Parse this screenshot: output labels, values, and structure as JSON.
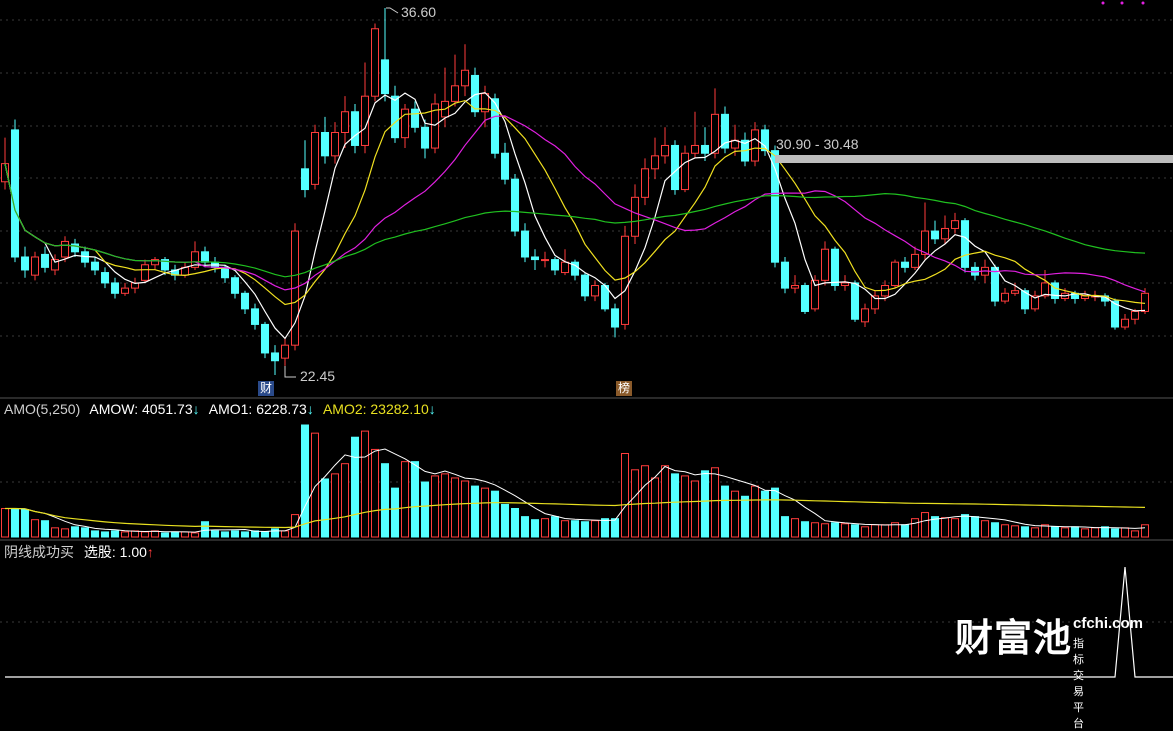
{
  "colors": {
    "up": "#ff3c3c",
    "down": "#54ffff",
    "ma5": "#ffffff",
    "ma10": "#f0e020",
    "ma20": "#e020e0",
    "ma60": "#20c020",
    "amo_line": "#ffffff",
    "amo2_line": "#e8e020",
    "grid": "#3a3a3a",
    "highlight_bar": "#bdbdbd"
  },
  "main": {
    "high_label": "36.60",
    "low_label": "22.45",
    "range_label": "30.90 - 30.48",
    "marker_cai": "财",
    "marker_bang": "榜"
  },
  "amo": {
    "name": "AMO(5,250)",
    "amow_label": "AMOW: 4051.73",
    "amo1_label": "AMO1: 6228.73",
    "amo2_label": "AMO2: 23282.10",
    "arrow_down": "↓"
  },
  "signal": {
    "name": "阴线成功买",
    "value_label": "选股: 1.00",
    "arrow_up": "↑"
  },
  "watermark": {
    "brand": "财富池",
    "url": "cfchi.com",
    "slogan": "指标交易平台"
  },
  "chart_data": {
    "type": "candlestick",
    "price_range": [
      22.45,
      36.6
    ],
    "candles_ohlc": [
      [
        29.9,
        31.6,
        29.6,
        30.6
      ],
      [
        31.9,
        32.3,
        26.8,
        27.0
      ],
      [
        27.0,
        27.4,
        26.2,
        26.5
      ],
      [
        26.3,
        27.2,
        26.1,
        27.0
      ],
      [
        27.1,
        27.4,
        26.4,
        26.6
      ],
      [
        26.5,
        27.1,
        26.3,
        26.9
      ],
      [
        27.0,
        27.8,
        26.8,
        27.6
      ],
      [
        27.5,
        27.7,
        27.0,
        27.2
      ],
      [
        27.2,
        27.4,
        26.6,
        26.8
      ],
      [
        26.8,
        27.0,
        26.3,
        26.5
      ],
      [
        26.4,
        26.6,
        25.8,
        26.0
      ],
      [
        26.0,
        26.2,
        25.4,
        25.6
      ],
      [
        25.6,
        26.0,
        25.5,
        25.8
      ],
      [
        25.8,
        26.2,
        25.6,
        26.0
      ],
      [
        26.1,
        26.9,
        26.0,
        26.7
      ],
      [
        26.7,
        27.0,
        26.5,
        26.9
      ],
      [
        26.9,
        27.0,
        26.3,
        26.5
      ],
      [
        26.5,
        26.7,
        26.1,
        26.3
      ],
      [
        26.3,
        26.8,
        26.2,
        26.6
      ],
      [
        26.6,
        27.6,
        26.5,
        27.2
      ],
      [
        27.2,
        27.4,
        26.6,
        26.8
      ],
      [
        26.8,
        27.0,
        26.4,
        26.6
      ],
      [
        26.6,
        26.7,
        26.0,
        26.2
      ],
      [
        26.2,
        26.3,
        25.4,
        25.6
      ],
      [
        25.6,
        25.7,
        24.8,
        25.0
      ],
      [
        25.0,
        25.2,
        24.2,
        24.4
      ],
      [
        24.4,
        24.5,
        23.1,
        23.3
      ],
      [
        23.3,
        23.6,
        22.45,
        23.0
      ],
      [
        23.1,
        23.9,
        22.8,
        23.6
      ],
      [
        23.6,
        28.3,
        23.4,
        28.0
      ],
      [
        30.4,
        31.5,
        29.3,
        29.6
      ],
      [
        29.8,
        32.1,
        29.6,
        31.8
      ],
      [
        31.8,
        32.4,
        30.6,
        30.9
      ],
      [
        30.9,
        32.2,
        30.6,
        31.8
      ],
      [
        31.8,
        33.2,
        31.2,
        32.6
      ],
      [
        32.6,
        32.9,
        31.0,
        31.3
      ],
      [
        31.3,
        34.5,
        31.0,
        33.2
      ],
      [
        33.2,
        36.0,
        33.0,
        35.8
      ],
      [
        34.6,
        36.6,
        33.0,
        33.3
      ],
      [
        33.2,
        33.6,
        31.4,
        31.6
      ],
      [
        31.6,
        32.9,
        31.2,
        32.7
      ],
      [
        32.7,
        33.0,
        31.8,
        32.0
      ],
      [
        32.0,
        32.3,
        30.8,
        31.2
      ],
      [
        31.2,
        33.3,
        31.0,
        32.9
      ],
      [
        32.4,
        34.3,
        32.0,
        33.0
      ],
      [
        33.0,
        34.8,
        32.8,
        33.6
      ],
      [
        33.6,
        35.2,
        33.2,
        34.2
      ],
      [
        34.0,
        34.3,
        32.4,
        32.6
      ],
      [
        32.6,
        33.6,
        32.0,
        33.3
      ],
      [
        33.1,
        33.3,
        30.8,
        31.0
      ],
      [
        31.0,
        31.4,
        29.8,
        30.0
      ],
      [
        30.0,
        30.2,
        27.8,
        28.0
      ],
      [
        28.0,
        28.3,
        26.8,
        27.0
      ],
      [
        27.0,
        27.3,
        26.5,
        26.9
      ],
      [
        26.9,
        27.2,
        26.6,
        26.9
      ],
      [
        26.9,
        27.0,
        26.3,
        26.5
      ],
      [
        26.4,
        27.3,
        26.3,
        26.8
      ],
      [
        26.8,
        26.9,
        26.1,
        26.3
      ],
      [
        26.3,
        26.4,
        25.3,
        25.5
      ],
      [
        25.5,
        26.1,
        25.3,
        25.9
      ],
      [
        25.9,
        26.0,
        24.9,
        25.0
      ],
      [
        25.0,
        25.2,
        23.9,
        24.3
      ],
      [
        24.4,
        28.2,
        24.2,
        27.8
      ],
      [
        27.8,
        29.8,
        27.5,
        29.3
      ],
      [
        29.3,
        30.8,
        29.0,
        30.4
      ],
      [
        30.4,
        31.6,
        30.0,
        30.9
      ],
      [
        30.9,
        32.0,
        30.6,
        31.3
      ],
      [
        31.3,
        31.5,
        29.4,
        29.6
      ],
      [
        29.6,
        31.3,
        29.5,
        31.0
      ],
      [
        31.0,
        32.6,
        30.8,
        31.3
      ],
      [
        31.3,
        32.0,
        30.7,
        31.0
      ],
      [
        31.0,
        33.5,
        30.8,
        32.5
      ],
      [
        32.5,
        32.8,
        31.0,
        31.2
      ],
      [
        31.2,
        32.1,
        30.9,
        31.5
      ],
      [
        31.5,
        31.8,
        30.5,
        30.7
      ],
      [
        30.7,
        32.2,
        30.5,
        31.9
      ],
      [
        31.9,
        32.1,
        30.9,
        31.1
      ],
      [
        31.1,
        31.3,
        26.6,
        26.8
      ],
      [
        26.8,
        27.0,
        25.6,
        25.8
      ],
      [
        25.8,
        26.3,
        25.6,
        25.9
      ],
      [
        25.9,
        26.0,
        24.8,
        24.9
      ],
      [
        25.0,
        26.3,
        24.9,
        26.1
      ],
      [
        26.1,
        27.6,
        25.9,
        27.3
      ],
      [
        27.3,
        27.4,
        25.7,
        25.9
      ],
      [
        25.9,
        26.3,
        25.7,
        26.0
      ],
      [
        26.0,
        26.1,
        24.5,
        24.6
      ],
      [
        24.5,
        25.2,
        24.3,
        25.0
      ],
      [
        25.0,
        25.7,
        24.8,
        25.5
      ],
      [
        25.5,
        26.1,
        25.3,
        25.9
      ],
      [
        25.9,
        26.9,
        25.8,
        26.8
      ],
      [
        26.8,
        27.0,
        26.4,
        26.6
      ],
      [
        26.6,
        27.4,
        26.5,
        27.1
      ],
      [
        27.1,
        29.1,
        26.9,
        28.0
      ],
      [
        28.0,
        28.4,
        27.5,
        27.7
      ],
      [
        27.7,
        28.6,
        27.5,
        28.1
      ],
      [
        28.1,
        28.7,
        27.9,
        28.4
      ],
      [
        28.4,
        28.5,
        26.4,
        26.6
      ],
      [
        26.6,
        26.8,
        26.1,
        26.3
      ],
      [
        26.3,
        26.9,
        26.0,
        26.6
      ],
      [
        26.6,
        26.7,
        25.1,
        25.3
      ],
      [
        25.3,
        25.8,
        25.2,
        25.6
      ],
      [
        25.6,
        26.0,
        25.5,
        25.7
      ],
      [
        25.7,
        25.8,
        24.8,
        25.0
      ],
      [
        25.0,
        25.7,
        24.9,
        25.5
      ],
      [
        25.5,
        26.5,
        25.4,
        26.0
      ],
      [
        26.0,
        26.1,
        25.2,
        25.4
      ],
      [
        25.4,
        25.8,
        25.3,
        25.6
      ],
      [
        25.6,
        25.7,
        25.2,
        25.4
      ],
      [
        25.4,
        25.7,
        25.3,
        25.5
      ],
      [
        25.5,
        25.7,
        25.3,
        25.5
      ],
      [
        25.5,
        25.6,
        25.1,
        25.3
      ],
      [
        25.3,
        25.4,
        24.2,
        24.3
      ],
      [
        24.3,
        24.8,
        24.2,
        24.6
      ],
      [
        24.6,
        25.0,
        24.4,
        24.9
      ],
      [
        24.9,
        25.8,
        24.8,
        25.6
      ]
    ],
    "ma_periods": [
      5,
      10,
      20,
      60
    ],
    "amo_values": [
      28000,
      28000,
      27000,
      17000,
      16000,
      9000,
      8000,
      10000,
      9000,
      6000,
      5000,
      6000,
      5000,
      6000,
      5000,
      6000,
      4000,
      5000,
      5000,
      4000,
      15000,
      6000,
      5000,
      6000,
      5000,
      6000,
      5000,
      8000,
      6000,
      22000,
      110000,
      102000,
      57000,
      62000,
      72000,
      98000,
      104000,
      86000,
      72000,
      48000,
      74000,
      74000,
      54000,
      60000,
      62000,
      58000,
      55000,
      50000,
      48000,
      45000,
      32000,
      28000,
      20000,
      17000,
      18000,
      20000,
      16000,
      16000,
      15000,
      16000,
      18000,
      18000,
      82000,
      66000,
      70000,
      58000,
      70000,
      62000,
      60000,
      55000,
      65000,
      68000,
      50000,
      45000,
      40000,
      50000,
      45000,
      48000,
      20000,
      18000,
      15000,
      14000,
      13000,
      14000,
      13000,
      12000,
      10000,
      12000,
      12000,
      14000,
      12000,
      18000,
      24000,
      20000,
      19000,
      18000,
      22000,
      20000,
      16000,
      14000,
      12000,
      11000,
      10000,
      9000,
      12000,
      10000,
      9000,
      10000,
      8000,
      9000,
      10000,
      8000,
      9000,
      6000,
      12000
    ],
    "amo_range": [
      0,
      110000
    ],
    "signal_values": [
      0,
      0,
      0,
      0,
      0,
      0,
      0,
      0,
      0,
      0,
      0,
      0,
      0,
      0,
      0,
      0,
      0,
      0,
      0,
      0,
      0,
      0,
      0,
      0,
      0,
      0,
      0,
      0,
      0,
      0,
      0,
      0,
      0,
      0,
      0,
      0,
      0,
      0,
      0,
      0,
      0,
      0,
      0,
      0,
      0,
      0,
      0,
      0,
      0,
      0,
      0,
      0,
      0,
      0,
      0,
      0,
      0,
      0,
      0,
      0,
      0,
      0,
      0,
      0,
      0,
      0,
      0,
      0,
      0,
      0,
      0,
      0,
      0,
      0,
      0,
      0,
      0,
      0,
      0,
      0,
      0,
      0,
      0,
      0,
      0,
      0,
      0,
      0,
      0,
      0,
      0,
      0,
      0,
      0,
      0,
      0,
      0,
      0,
      0,
      0,
      0,
      0,
      0,
      0,
      0,
      0,
      0,
      0,
      0,
      0,
      0,
      0,
      1,
      0,
      0
    ],
    "grid": true
  }
}
